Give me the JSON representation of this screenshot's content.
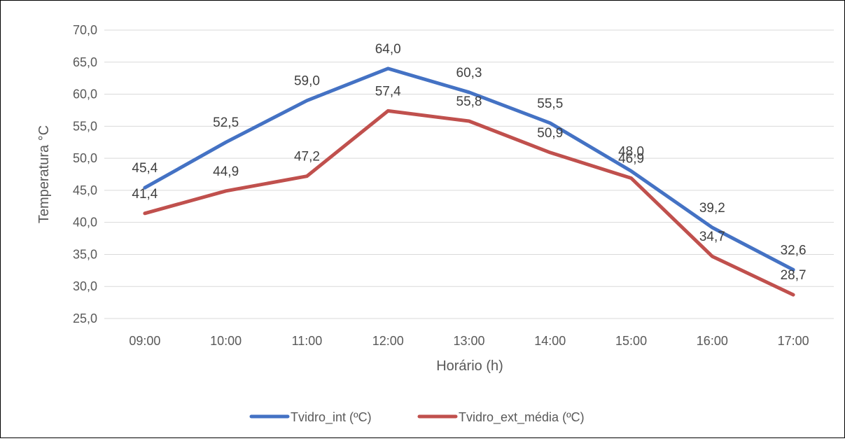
{
  "chart_data": {
    "type": "line",
    "title": "",
    "xlabel": "Horário (h)",
    "ylabel": "Temperatura °C",
    "categories": [
      "09:00",
      "10:00",
      "11:00",
      "12:00",
      "13:00",
      "14:00",
      "15:00",
      "16:00",
      "17:00"
    ],
    "ylim": [
      25,
      70
    ],
    "ytick_step": 5,
    "ytick_labels": [
      "25,0",
      "30,0",
      "35,0",
      "40,0",
      "45,0",
      "50,0",
      "55,0",
      "60,0",
      "65,0",
      "70,0"
    ],
    "grid": true,
    "legend_position": "bottom",
    "series": [
      {
        "name": "Tvidro_int (ºC)",
        "color": "#4472C4",
        "values": [
          45.4,
          52.5,
          59.0,
          64.0,
          60.3,
          55.5,
          48.0,
          39.2,
          32.6
        ],
        "labels": [
          "45,4",
          "52,5",
          "59,0",
          "64,0",
          "60,3",
          "55,5",
          "48,0",
          "39,2",
          "32,6"
        ]
      },
      {
        "name": "Tvidro_ext_média (ºC)",
        "color": "#C0504D",
        "values": [
          41.4,
          44.9,
          47.2,
          57.4,
          55.8,
          50.9,
          46.9,
          34.7,
          28.7
        ],
        "labels": [
          "41,4",
          "44,9",
          "47,2",
          "57,4",
          "55,8",
          "50,9",
          "46,9",
          "34,7",
          "28,7"
        ]
      }
    ]
  }
}
